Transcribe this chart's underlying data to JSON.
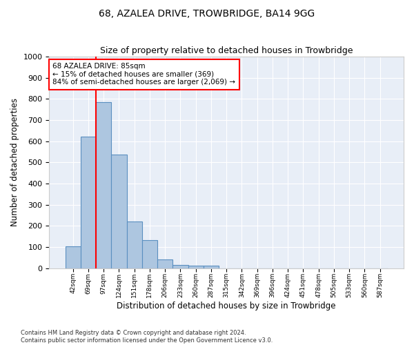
{
  "title1": "68, AZALEA DRIVE, TROWBRIDGE, BA14 9GG",
  "title2": "Size of property relative to detached houses in Trowbridge",
  "xlabel": "Distribution of detached houses by size in Trowbridge",
  "ylabel": "Number of detached properties",
  "bar_labels": [
    "42sqm",
    "69sqm",
    "97sqm",
    "124sqm",
    "151sqm",
    "178sqm",
    "206sqm",
    "233sqm",
    "260sqm",
    "287sqm",
    "315sqm",
    "342sqm",
    "369sqm",
    "396sqm",
    "424sqm",
    "451sqm",
    "478sqm",
    "505sqm",
    "533sqm",
    "560sqm",
    "587sqm"
  ],
  "bar_values": [
    103,
    623,
    785,
    538,
    222,
    132,
    42,
    17,
    12,
    11,
    0,
    0,
    0,
    0,
    0,
    0,
    0,
    0,
    0,
    0,
    0
  ],
  "bar_color": "#adc6e0",
  "bar_edge_color": "#5a8fc0",
  "vline_color": "red",
  "annotation_text": "68 AZALEA DRIVE: 85sqm\n← 15% of detached houses are smaller (369)\n84% of semi-detached houses are larger (2,069) →",
  "annotation_box_color": "white",
  "annotation_box_edge": "red",
  "ylim": [
    0,
    1000
  ],
  "yticks": [
    0,
    100,
    200,
    300,
    400,
    500,
    600,
    700,
    800,
    900,
    1000
  ],
  "background_color": "#e8eef7",
  "footnote": "Contains HM Land Registry data © Crown copyright and database right 2024.\nContains public sector information licensed under the Open Government Licence v3.0.",
  "title1_fontsize": 10,
  "title2_fontsize": 9,
  "xlabel_fontsize": 8.5,
  "ylabel_fontsize": 8.5,
  "annotation_fontsize": 7.5
}
